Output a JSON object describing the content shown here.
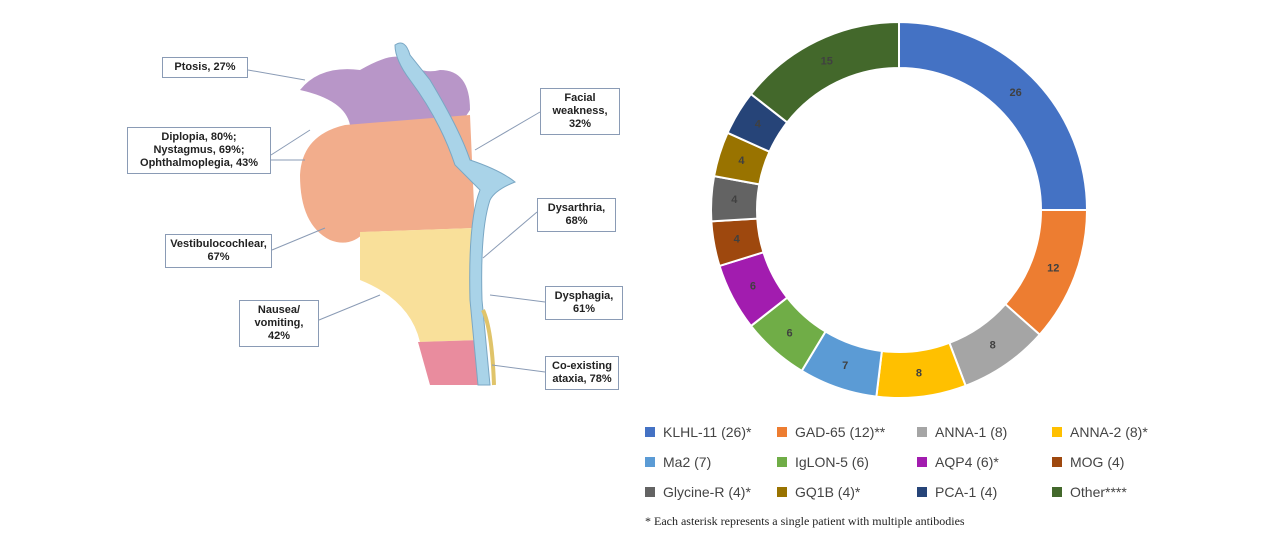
{
  "diagram": {
    "labels": [
      [
        "Ptosis, 27%"
      ],
      [
        "Diplopia, 80%;",
        "Nystagmus, 69%;",
        "Ophthalmoplegia, 43%"
      ],
      [
        "Vestibulocochlear,",
        "67%"
      ],
      [
        "Nausea/",
        "vomiting,",
        "42%"
      ],
      [
        "Facial",
        "weakness,",
        "32%"
      ],
      [
        "Dysarthria,",
        "68%"
      ],
      [
        "Dysphagia,",
        "61%"
      ],
      [
        "Co-existing",
        "ataxia, 78%"
      ]
    ]
  },
  "chart_data": {
    "type": "donut",
    "categories": [
      "KLHL-11 (26)*",
      "GAD-65 (12)**",
      "ANNA-1 (8)",
      "ANNA-2 (8)*",
      "Ma2 (7)",
      "IgLON-5 (6)",
      "AQP4 (6)*",
      "MOG (4)",
      "Glycine-R (4)*",
      "GQ1B (4)*",
      "PCA-1 (4)",
      "Other****"
    ],
    "values": [
      26,
      12,
      8,
      8,
      7,
      6,
      6,
      4,
      4,
      4,
      4,
      15
    ],
    "colors": [
      "#4472c4",
      "#ed7d31",
      "#a5a5a5",
      "#ffc000",
      "#5b9bd5",
      "#70ad47",
      "#a21caf",
      "#9e480e",
      "#636363",
      "#997300",
      "#264478",
      "#43682b"
    ],
    "footnote": "* Each asterisk represents a single patient with multiple antibodies"
  }
}
